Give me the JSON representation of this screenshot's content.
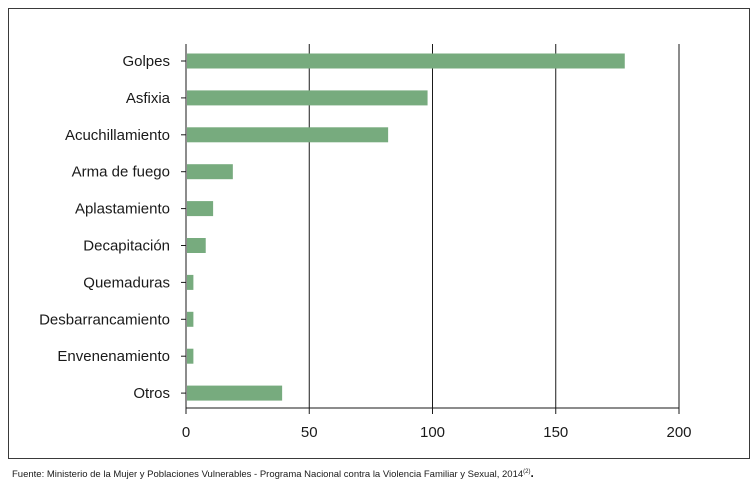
{
  "chart_data": {
    "type": "bar",
    "orientation": "horizontal",
    "categories": [
      "Golpes",
      "Asfixia",
      "Acuchillamiento",
      "Arma de fuego",
      "Aplastamiento",
      "Decapitación",
      "Quemaduras",
      "Desbarrancamiento",
      "Envenenamiento",
      "Otros"
    ],
    "values": [
      178,
      98,
      82,
      19,
      11,
      8,
      3,
      3,
      3,
      39
    ],
    "xlim": [
      0,
      200
    ],
    "xticks": [
      0,
      50,
      100,
      150,
      200
    ],
    "grid": "vertical",
    "bar_color": "#77ab7e"
  },
  "source": {
    "text": "Fuente: Ministerio de la Mujer y Poblaciones Vulnerables - Programa Nacional contra la Violencia Familiar y Sexual, 2014",
    "superscript": "(2)",
    "end": "."
  }
}
